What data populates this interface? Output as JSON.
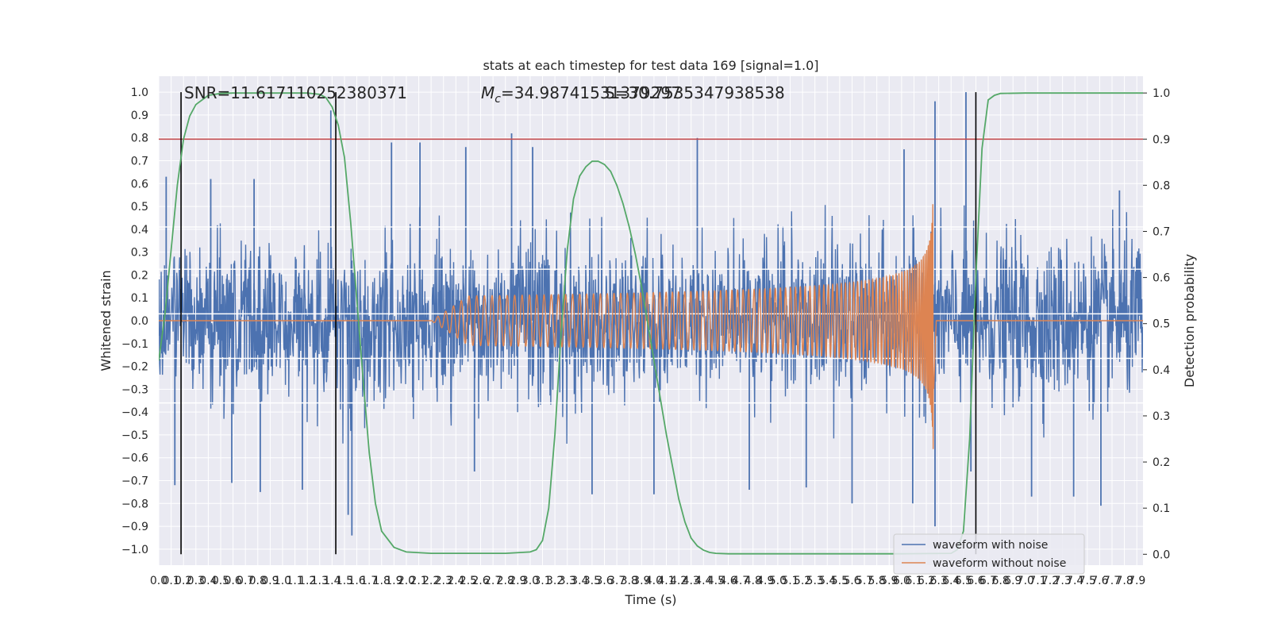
{
  "chart_data": {
    "type": "line",
    "title": "stats at each timestep for test data 169 [signal=1.0]",
    "xlabel": "Time (s)",
    "ylabel": "Whitened strain",
    "y2label": "Detection probability",
    "xlim": [
      0,
      7.95
    ],
    "ylim": [
      -1.07,
      1.07
    ],
    "y2lim": [
      -0.0236,
      1.0364
    ],
    "x_ticks": [
      "0.0",
      "0.1",
      "0.2",
      "0.3",
      "0.4",
      "0.5",
      "0.6",
      "0.7",
      "0.8",
      "0.9",
      "1.0",
      "1.1",
      "1.2",
      "1.3",
      "1.4",
      "1.5",
      "1.6",
      "1.7",
      "1.8",
      "1.9",
      "2.0",
      "2.1",
      "2.2",
      "2.3",
      "2.4",
      "2.5",
      "2.6",
      "2.7",
      "2.8",
      "2.9",
      "3.0",
      "3.1",
      "3.2",
      "3.3",
      "3.4",
      "3.5",
      "3.6",
      "3.7",
      "3.8",
      "3.9",
      "4.0",
      "4.1",
      "4.2",
      "4.3",
      "4.4",
      "4.5",
      "4.6",
      "4.7",
      "4.8",
      "4.9",
      "5.0",
      "5.1",
      "5.2",
      "5.3",
      "5.4",
      "5.5",
      "5.6",
      "5.7",
      "5.8",
      "5.9",
      "6.0",
      "6.1",
      "6.2",
      "6.3",
      "6.4",
      "6.5",
      "6.6",
      "6.7",
      "6.8",
      "6.9",
      "7.0",
      "7.1",
      "7.2",
      "7.3",
      "7.4",
      "7.5",
      "7.6",
      "7.7",
      "7.8",
      "7.9"
    ],
    "y_ticks": [
      "1.0",
      "0.9",
      "0.8",
      "0.7",
      "0.6",
      "0.5",
      "0.4",
      "0.3",
      "0.2",
      "0.1",
      "0.0",
      "−0.1",
      "−0.2",
      "−0.3",
      "−0.4",
      "−0.5",
      "−0.6",
      "−0.7",
      "−0.8",
      "−0.9",
      "−1.0"
    ],
    "y2_ticks": [
      "1.0",
      "0.9",
      "0.8",
      "0.7",
      "0.6",
      "0.5",
      "0.4",
      "0.3",
      "0.2",
      "0.1",
      "0.0"
    ],
    "annotations": {
      "snr": "SNR=11.617110252380371",
      "mc_symbol": "M",
      "mc_sub": "c",
      "mc_value": "=34.98741531379297",
      "overlap": "S=30.7535347938538"
    },
    "threshold": 0.9,
    "vlines": [
      0.18,
      1.43,
      6.6
    ],
    "series": [
      {
        "name": "waveform with noise",
        "color": "#4c72b0",
        "noise_extent": [
          0.0,
          7.95
        ],
        "typical_abs": 0.45,
        "peak_points": [
          {
            "x": 0.06,
            "y": 0.63
          },
          {
            "x": 0.13,
            "y": -0.72
          },
          {
            "x": 0.42,
            "y": 0.62
          },
          {
            "x": 0.59,
            "y": -0.71
          },
          {
            "x": 0.77,
            "y": 0.62
          },
          {
            "x": 0.82,
            "y": -0.75
          },
          {
            "x": 1.16,
            "y": -0.74
          },
          {
            "x": 1.39,
            "y": 0.92
          },
          {
            "x": 1.56,
            "y": -0.94
          },
          {
            "x": 1.53,
            "y": -0.85
          },
          {
            "x": 1.88,
            "y": 0.78
          },
          {
            "x": 2.11,
            "y": 0.78
          },
          {
            "x": 2.48,
            "y": 0.76
          },
          {
            "x": 2.55,
            "y": -0.66
          },
          {
            "x": 2.85,
            "y": 0.82
          },
          {
            "x": 3.02,
            "y": 0.76
          },
          {
            "x": 3.5,
            "y": -0.76
          },
          {
            "x": 4.0,
            "y": -0.76
          },
          {
            "x": 4.35,
            "y": 0.8
          },
          {
            "x": 4.77,
            "y": -0.74
          },
          {
            "x": 5.23,
            "y": -0.73
          },
          {
            "x": 5.6,
            "y": -0.8
          },
          {
            "x": 6.02,
            "y": 0.75
          },
          {
            "x": 6.09,
            "y": -0.8
          },
          {
            "x": 6.27,
            "y": 0.96
          },
          {
            "x": 6.27,
            "y": -0.9
          },
          {
            "x": 6.52,
            "y": 1.0
          },
          {
            "x": 6.56,
            "y": -0.66
          },
          {
            "x": 7.05,
            "y": -0.77
          },
          {
            "x": 7.39,
            "y": -0.77
          },
          {
            "x": 7.61,
            "y": -0.81
          },
          {
            "x": 7.76,
            "y": 0.57
          }
        ]
      },
      {
        "name": "waveform without noise",
        "color": "#dd8452",
        "chirp_start": 2.2,
        "merger_time": 6.26,
        "peak_amplitude": 0.6
      },
      {
        "name": "",
        "axis": "right",
        "color": "#55a868",
        "x": [
          0.0,
          0.05,
          0.1,
          0.15,
          0.2,
          0.25,
          0.3,
          0.4,
          0.5,
          0.6,
          0.8,
          1.0,
          1.2,
          1.3,
          1.35,
          1.4,
          1.45,
          1.5,
          1.55,
          1.6,
          1.65,
          1.7,
          1.75,
          1.8,
          1.9,
          2.0,
          2.2,
          2.5,
          2.8,
          3.0,
          3.05,
          3.1,
          3.15,
          3.2,
          3.25,
          3.3,
          3.35,
          3.4,
          3.45,
          3.5,
          3.55,
          3.6,
          3.65,
          3.7,
          3.75,
          3.8,
          3.85,
          3.9,
          3.95,
          4.0,
          4.05,
          4.1,
          4.15,
          4.2,
          4.25,
          4.3,
          4.35,
          4.4,
          4.45,
          4.5,
          4.6,
          4.7,
          5.0,
          5.5,
          6.0,
          6.4,
          6.45,
          6.5,
          6.55,
          6.6,
          6.65,
          6.7,
          6.75,
          6.8,
          7.0,
          7.5,
          7.95
        ],
        "y": [
          0.42,
          0.52,
          0.66,
          0.8,
          0.9,
          0.95,
          0.975,
          0.995,
          0.999,
          1.0,
          1.0,
          1.0,
          1.0,
          0.997,
          0.99,
          0.97,
          0.93,
          0.86,
          0.72,
          0.55,
          0.38,
          0.22,
          0.11,
          0.05,
          0.015,
          0.005,
          0.002,
          0.002,
          0.002,
          0.005,
          0.01,
          0.03,
          0.1,
          0.26,
          0.48,
          0.66,
          0.77,
          0.82,
          0.84,
          0.852,
          0.852,
          0.845,
          0.83,
          0.8,
          0.76,
          0.71,
          0.65,
          0.58,
          0.5,
          0.42,
          0.34,
          0.26,
          0.19,
          0.12,
          0.07,
          0.035,
          0.018,
          0.009,
          0.004,
          0.002,
          0.001,
          0.001,
          0.001,
          0.001,
          0.001,
          0.002,
          0.01,
          0.05,
          0.25,
          0.6,
          0.88,
          0.985,
          0.995,
          0.999,
          1.0,
          1.0,
          1.0
        ]
      }
    ],
    "grid": true,
    "legend": "lower-right"
  }
}
